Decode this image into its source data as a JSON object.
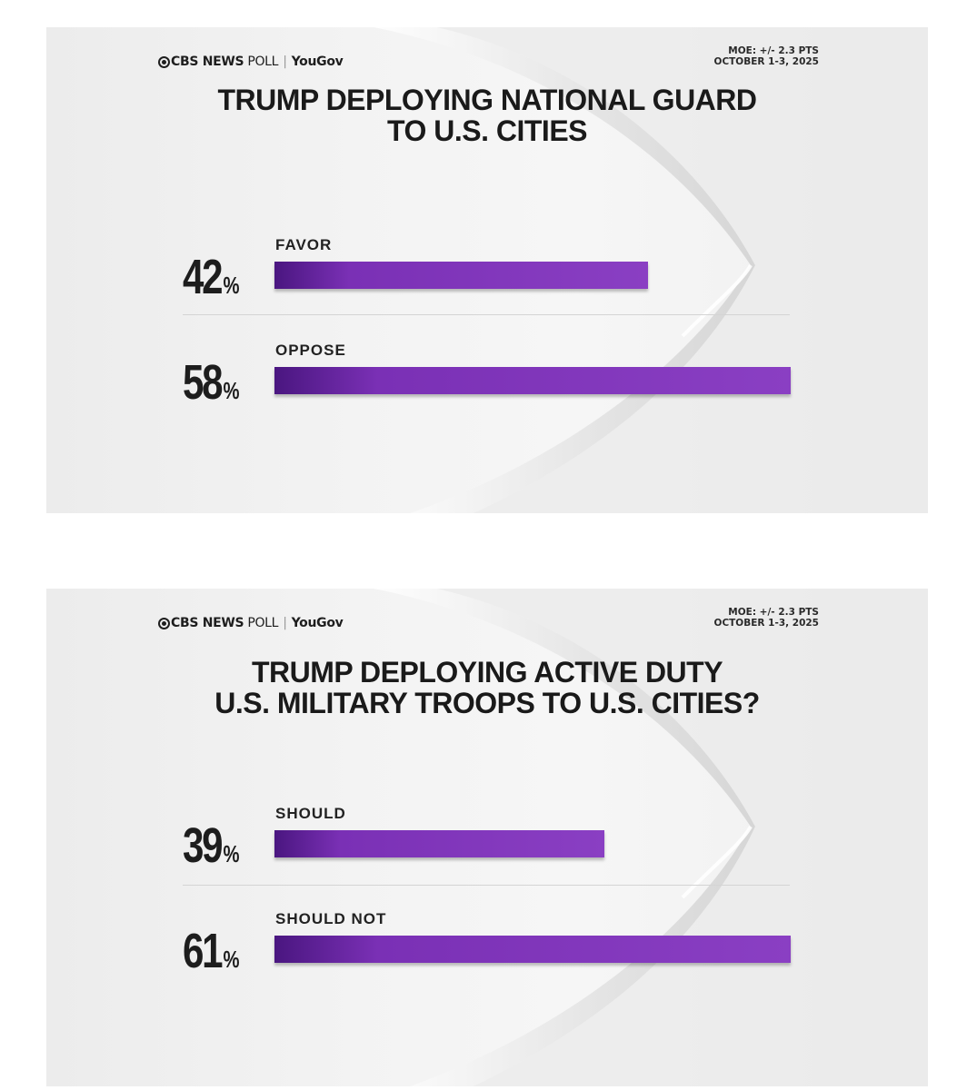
{
  "panels": [
    {
      "logo": {
        "cbs_news": "CBS NEWS",
        "poll": "POLL",
        "separator": "|",
        "yougov": "YouGov"
      },
      "moe": {
        "line1": "MOE: +/- 2.3 PTS",
        "line2": "OCTOBER 1-3, 2025"
      },
      "title_lines": [
        "TRUMP DEPLOYING NATIONAL GUARD",
        "TO U.S. CITIES"
      ],
      "percent_symbol": "%",
      "rows": [
        {
          "label": "FAVOR",
          "value": 42,
          "value_text": "42"
        },
        {
          "label": "OPPOSE",
          "value": 58,
          "value_text": "58"
        }
      ]
    },
    {
      "logo": {
        "cbs_news": "CBS NEWS",
        "poll": "POLL",
        "separator": "|",
        "yougov": "YouGov"
      },
      "moe": {
        "line1": "MOE: +/- 2.3 PTS",
        "line2": "OCTOBER 1-3, 2025"
      },
      "title_lines": [
        "TRUMP DEPLOYING ACTIVE DUTY",
        "U.S. MILITARY TROOPS TO U.S. CITIES?"
      ],
      "percent_symbol": "%",
      "rows": [
        {
          "label": "SHOULD",
          "value": 39,
          "value_text": "39"
        },
        {
          "label": "SHOULD NOT",
          "value": 61,
          "value_text": "61"
        }
      ]
    }
  ],
  "colors": {
    "bar": "#7a30b5",
    "bar_dark": "#4a1680",
    "text": "#1d1d1d",
    "background": "#f1f1f1"
  },
  "chart_data": [
    {
      "type": "bar",
      "title": "TRUMP DEPLOYING NATIONAL GUARD TO U.S. CITIES",
      "categories": [
        "FAVOR",
        "OPPOSE"
      ],
      "values": [
        42,
        58
      ],
      "unit": "%",
      "orientation": "horizontal"
    },
    {
      "type": "bar",
      "title": "TRUMP DEPLOYING ACTIVE DUTY U.S. MILITARY TROOPS TO U.S. CITIES?",
      "categories": [
        "SHOULD",
        "SHOULD NOT"
      ],
      "values": [
        39,
        61
      ],
      "unit": "%",
      "orientation": "horizontal"
    }
  ]
}
